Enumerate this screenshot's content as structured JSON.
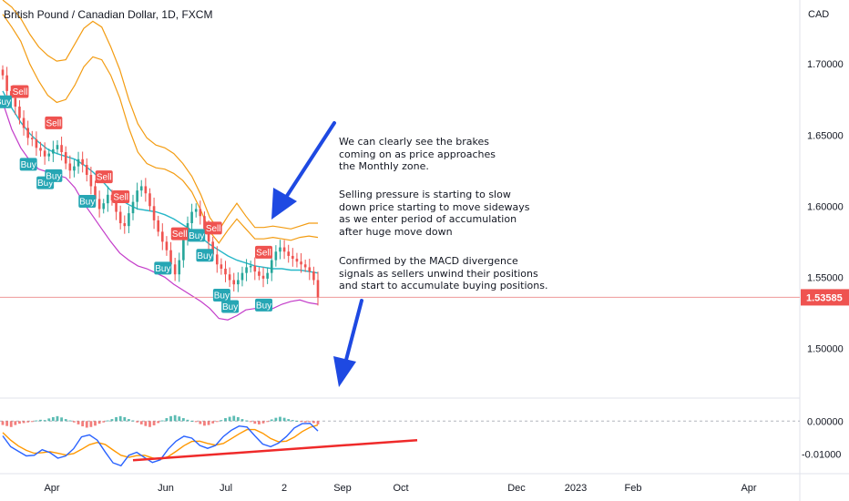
{
  "header": {
    "title": "British Pound / Canadian Dollar, 1D, FXCM"
  },
  "annotations": {
    "para1": [
      "We can clearly see the brakes",
      "coming on as price approaches",
      "the Monthly zone."
    ],
    "para2": [
      "Selling pressure is starting to slow",
      "down price starting to move sideways",
      "as we enter period of accumulation",
      "after huge move down"
    ],
    "para3": [
      "Confirmed by the MACD divergence",
      "signals as sellers unwind their positions",
      "and start to accumulate buying positions."
    ]
  },
  "chart_data": [
    {
      "type": "candlestick",
      "title": "British Pound / Canadian Dollar, 1D, FXCM",
      "currency_label": "CAD",
      "ylim": [
        1.465,
        1.745
      ],
      "yticks": [
        1.7,
        1.65,
        1.6,
        1.55,
        1.5
      ],
      "ytick_labels": [
        "1.70000",
        "1.65000",
        "1.60000",
        "1.55000",
        "1.50000"
      ],
      "last_price": 1.53585,
      "last_price_label": "1.53585",
      "x_labels": [
        "Apr",
        "Jun",
        "Jul",
        "2",
        "Sep",
        "Oct",
        "Dec",
        "2023",
        "Feb",
        "Apr"
      ],
      "close_path": [
        1.692,
        1.681,
        1.676,
        1.67,
        1.662,
        1.655,
        1.648,
        1.647,
        1.641,
        1.639,
        1.635,
        1.637,
        1.64,
        1.643,
        1.638,
        1.63,
        1.625,
        1.628,
        1.633,
        1.629,
        1.622,
        1.614,
        1.605,
        1.598,
        1.602,
        1.608,
        1.604,
        1.596,
        1.588,
        1.586,
        1.595,
        1.603,
        1.611,
        1.614,
        1.609,
        1.6,
        1.59,
        1.582,
        1.575,
        1.569,
        1.559,
        1.552,
        1.562,
        1.577,
        1.588,
        1.596,
        1.598,
        1.593,
        1.584,
        1.575,
        1.566,
        1.559,
        1.556,
        1.552,
        1.548,
        1.545,
        1.548,
        1.553,
        1.557,
        1.558,
        1.554,
        1.551,
        1.549,
        1.553,
        1.562,
        1.568,
        1.571,
        1.568,
        1.565,
        1.563,
        1.561,
        1.559,
        1.557,
        1.554,
        1.548,
        1.536
      ],
      "basis_line": [
        1.681,
        1.669,
        1.659,
        1.651,
        1.645,
        1.64,
        1.637,
        1.635,
        1.633,
        1.629,
        1.624,
        1.618,
        1.611,
        1.605,
        1.601,
        1.598,
        1.597,
        1.596,
        1.594,
        1.591,
        1.587,
        1.583,
        1.578,
        1.573,
        1.569,
        1.565,
        1.562,
        1.56,
        1.558,
        1.557,
        1.556,
        1.556,
        1.555,
        1.555,
        1.554,
        1.553
      ],
      "upper_band": [
        1.735,
        1.726,
        1.716,
        1.7,
        1.688,
        1.678,
        1.673,
        1.675,
        1.685,
        1.698,
        1.705,
        1.703,
        1.692,
        1.676,
        1.655,
        1.638,
        1.63,
        1.627,
        1.626,
        1.623,
        1.618,
        1.61,
        1.597,
        1.582,
        1.574,
        1.583,
        1.591,
        1.584,
        1.577,
        1.577,
        1.578,
        1.577,
        1.576,
        1.578,
        1.579,
        1.578
      ],
      "outer_band": [
        1.745,
        1.74,
        1.732,
        1.721,
        1.712,
        1.706,
        1.702,
        1.703,
        1.714,
        1.725,
        1.73,
        1.726,
        1.712,
        1.696,
        1.675,
        1.658,
        1.648,
        1.643,
        1.641,
        1.637,
        1.63,
        1.621,
        1.608,
        1.592,
        1.583,
        1.593,
        1.602,
        1.593,
        1.585,
        1.585,
        1.586,
        1.585,
        1.584,
        1.586,
        1.588,
        1.588
      ],
      "lower_band": [
        1.673,
        1.654,
        1.641,
        1.632,
        1.626,
        1.624,
        1.622,
        1.62,
        1.613,
        1.602,
        1.593,
        1.584,
        1.575,
        1.567,
        1.562,
        1.558,
        1.556,
        1.553,
        1.55,
        1.545,
        1.541,
        1.537,
        1.533,
        1.528,
        1.521,
        1.52,
        1.523,
        1.527,
        1.528,
        1.527,
        1.528,
        1.531,
        1.533,
        1.534,
        1.532,
        1.531
      ],
      "signals": [
        {
          "label": "Sell",
          "type": "sell",
          "index": 4
        },
        {
          "label": "Buy",
          "type": "buy",
          "index": 0
        },
        {
          "label": "Sell",
          "type": "sell",
          "index": 12
        },
        {
          "label": "Buy",
          "type": "buy",
          "index": 6
        },
        {
          "label": "Buy",
          "type": "buy",
          "index": 10
        },
        {
          "label": "Buy",
          "type": "buy",
          "index": 12
        },
        {
          "label": "Sell",
          "type": "sell",
          "index": 24
        },
        {
          "label": "Sell",
          "type": "sell",
          "index": 28
        },
        {
          "label": "Buy",
          "type": "buy",
          "index": 20
        },
        {
          "label": "Sell",
          "type": "sell",
          "index": 42
        },
        {
          "label": "Buy",
          "type": "buy",
          "index": 38
        },
        {
          "label": "Buy",
          "type": "buy",
          "index": 46
        },
        {
          "label": "Sell",
          "type": "sell",
          "index": 50
        },
        {
          "label": "Buy",
          "type": "buy",
          "index": 48
        },
        {
          "label": "Buy",
          "type": "buy",
          "index": 52
        },
        {
          "label": "Buy",
          "type": "buy",
          "index": 54
        },
        {
          "label": "Sell",
          "type": "sell",
          "index": 62
        },
        {
          "label": "Buy",
          "type": "buy",
          "index": 62
        }
      ],
      "colors": {
        "up": "#26a69a",
        "down": "#ef5350",
        "basis": "#26b7c8",
        "upper": "#f39c12",
        "lower": "#c33cc9",
        "sell": "#ef5350",
        "buy": "#26a6b4",
        "arrow": "#1e49e2",
        "price_line": "#ef9a9a"
      }
    },
    {
      "type": "macd",
      "ylim": [
        -0.016,
        0.007
      ],
      "yticks": [
        0.0,
        -0.01
      ],
      "ytick_labels": [
        "0.00000",
        "-0.01000"
      ],
      "histogram": [
        -0.0012,
        -0.0015,
        -0.0018,
        -0.0012,
        -0.0008,
        -0.0006,
        -0.0004,
        -0.0002,
        0.0002,
        0.0004,
        0.0003,
        0.0008,
        0.0012,
        0.0015,
        0.0011,
        0.0006,
        0.0002,
        -0.0004,
        -0.001,
        -0.0016,
        -0.002,
        -0.0018,
        -0.0014,
        -0.0008,
        -0.0004,
        0.0002,
        0.0006,
        0.0012,
        0.0015,
        0.0012,
        0.0006,
        0.0002,
        -0.0004,
        -0.001,
        -0.0015,
        -0.0018,
        -0.0013,
        -0.0006,
        0.0002,
        0.0009,
        0.0015,
        0.0018,
        0.0014,
        0.0009,
        0.0004,
        0.0001,
        -0.0003,
        -0.0009,
        -0.0014,
        -0.0012,
        -0.0007,
        -0.0002,
        0.0003,
        0.0009,
        0.0013,
        0.0016,
        0.0012,
        0.0006,
        0.0002,
        -0.0003,
        -0.0008,
        -0.001,
        -0.0007,
        -0.0002,
        0.0005,
        0.001,
        0.0013,
        0.001,
        0.0006,
        0.0003,
        0.0001,
        -0.0002,
        -0.0004,
        -0.0003,
        -0.0006,
        -0.001
      ],
      "macd_line": [
        -0.0045,
        -0.0078,
        -0.0092,
        -0.0106,
        -0.0104,
        -0.0087,
        -0.0096,
        -0.0113,
        -0.0106,
        -0.0084,
        -0.0048,
        -0.0042,
        -0.0058,
        -0.0094,
        -0.0127,
        -0.0136,
        -0.0104,
        -0.0095,
        -0.0111,
        -0.0126,
        -0.0118,
        -0.0085,
        -0.0061,
        -0.0046,
        -0.0052,
        -0.0074,
        -0.0083,
        -0.0074,
        -0.0047,
        -0.0028,
        -0.0015,
        -0.0018,
        -0.0045,
        -0.007,
        -0.0078,
        -0.0067,
        -0.0047,
        -0.0021,
        -0.0008,
        -0.0007,
        -0.003
      ],
      "signal_line": [
        -0.0035,
        -0.0058,
        -0.0076,
        -0.0089,
        -0.0098,
        -0.0096,
        -0.0093,
        -0.0098,
        -0.0103,
        -0.0099,
        -0.0086,
        -0.0072,
        -0.0065,
        -0.0071,
        -0.0088,
        -0.0104,
        -0.011,
        -0.0105,
        -0.0104,
        -0.0112,
        -0.0117,
        -0.0108,
        -0.0092,
        -0.0075,
        -0.0062,
        -0.0061,
        -0.0068,
        -0.0073,
        -0.0068,
        -0.0054,
        -0.0039,
        -0.0026,
        -0.0026,
        -0.0037,
        -0.0053,
        -0.0063,
        -0.0061,
        -0.0049,
        -0.0032,
        -0.0019,
        -0.0012
      ],
      "divergence_line": [
        [
          -0.0119,
          146
        ],
        [
          -0.0058,
          458
        ]
      ],
      "colors": {
        "macd": "#2962ff",
        "signal": "#ff9800",
        "hist_up": "#26a69a",
        "hist_down": "#ef5350",
        "divergence": "#ef2a2a"
      }
    }
  ]
}
